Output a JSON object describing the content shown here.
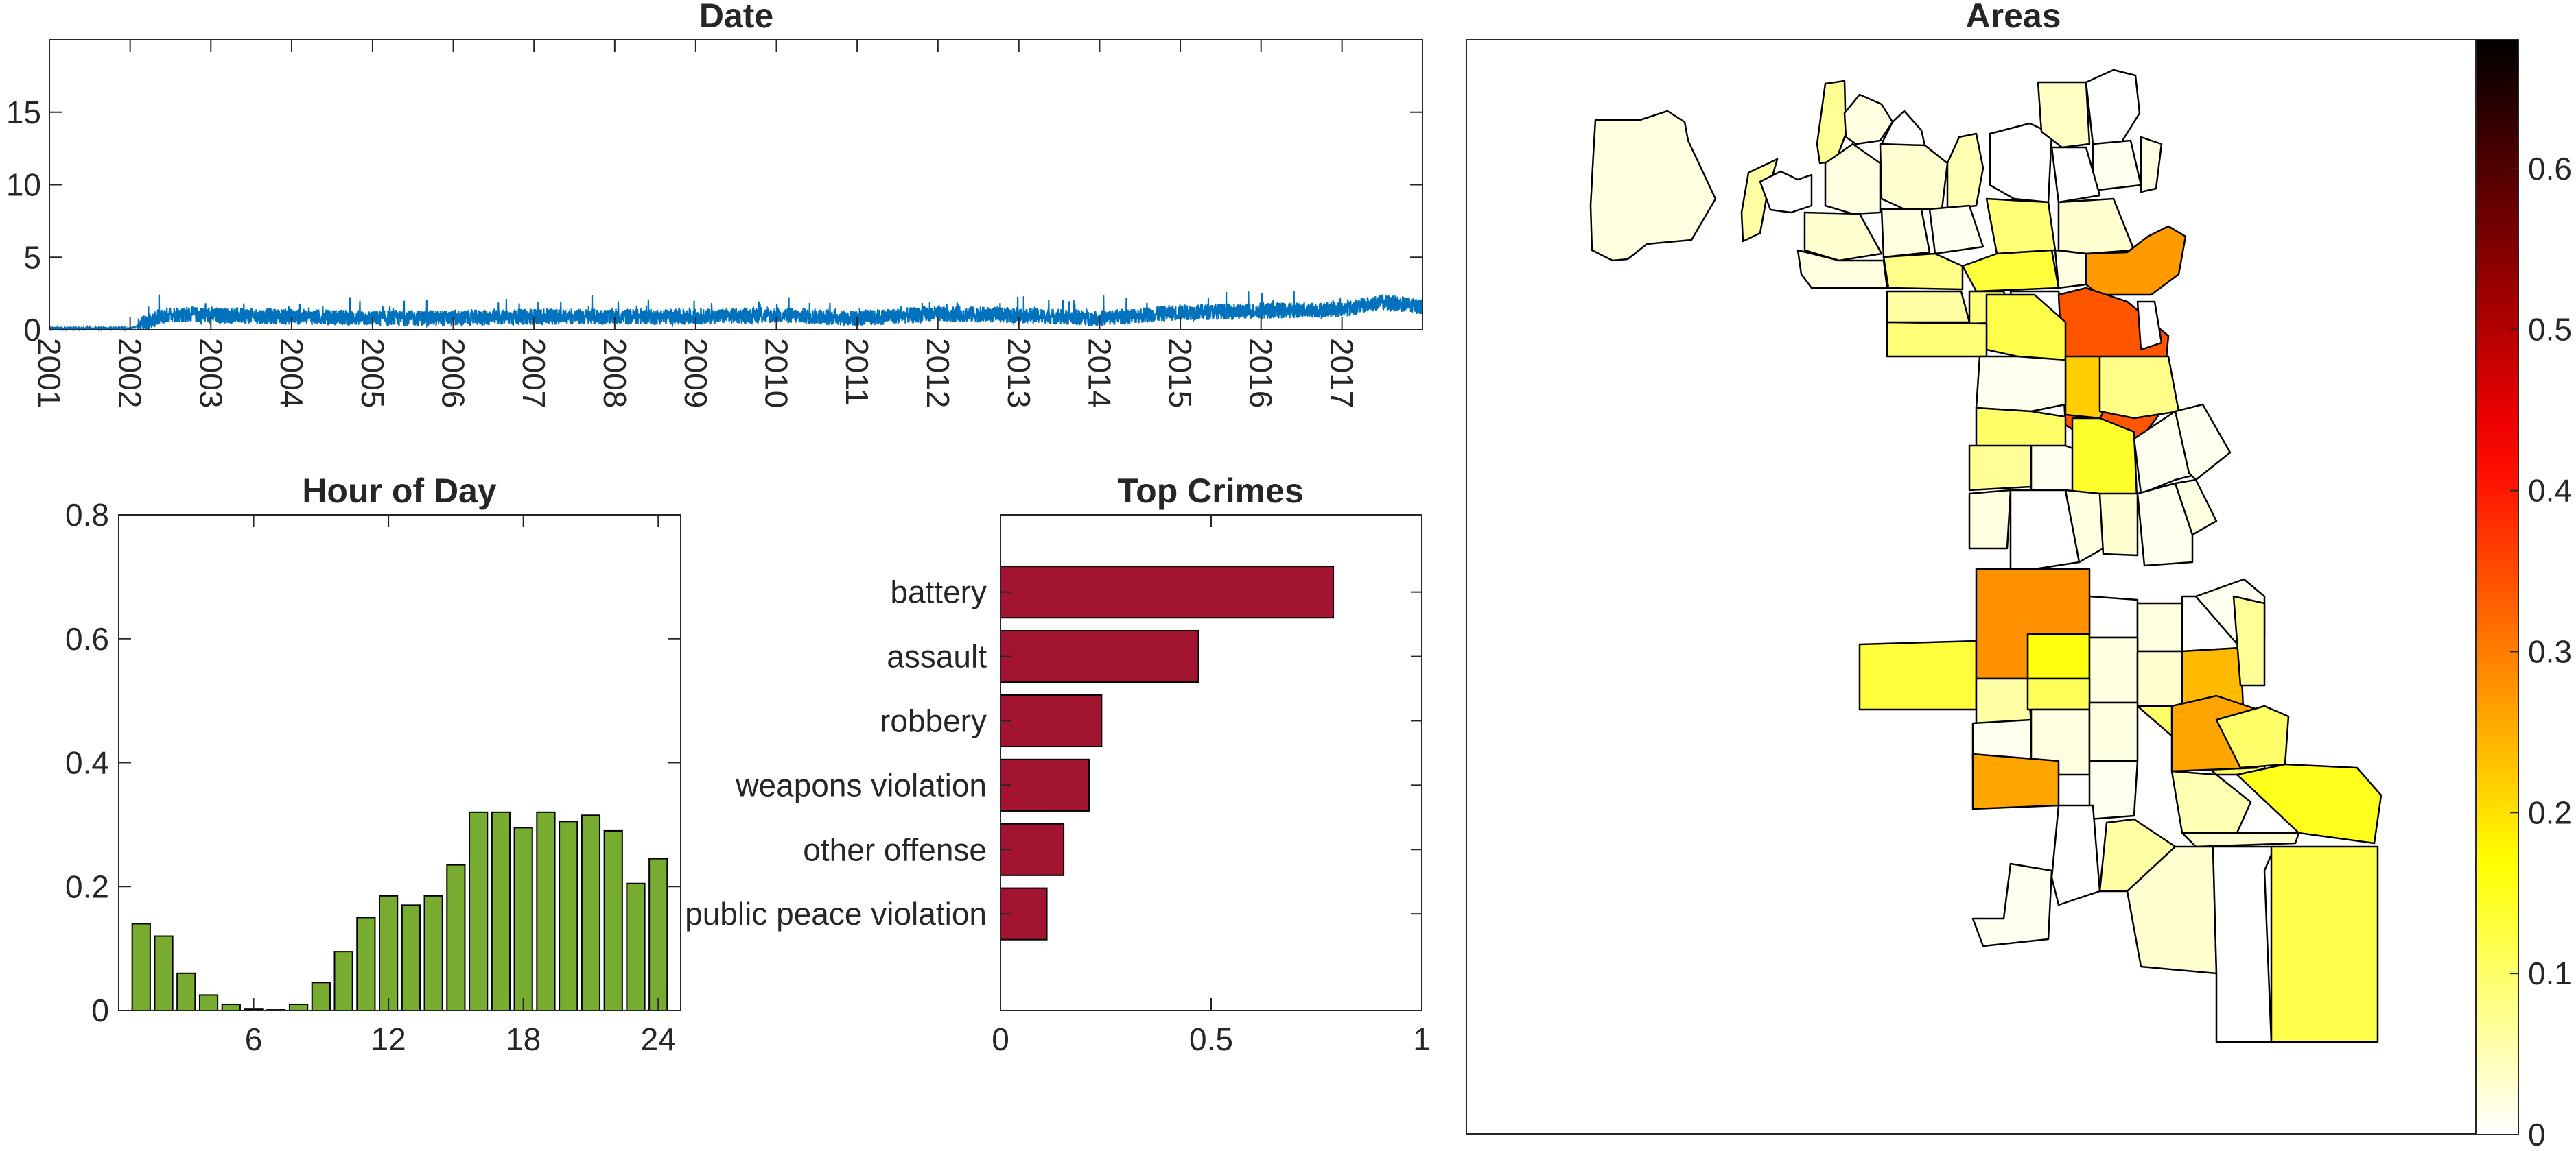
{
  "chart_data": [
    {
      "type": "line",
      "title": "Date",
      "xlabel": "",
      "ylabel": "",
      "ylim": [
        0,
        20
      ],
      "yticks": [
        0,
        5,
        10,
        15
      ],
      "xlim": [
        "2001-01-01",
        "2017-12-31"
      ],
      "xtick_labels": [
        "2001",
        "2002",
        "2003",
        "2004",
        "2005",
        "2006",
        "2007",
        "2008",
        "2009",
        "2010",
        "2011",
        "2012",
        "2013",
        "2014",
        "2015",
        "2016",
        "2017"
      ],
      "series_color": "#0072BD",
      "series": [
        {
          "x": [
            "2001",
            "2002",
            "2002.5",
            "2003",
            "2004",
            "2005",
            "2006",
            "2007",
            "2008",
            "2009",
            "2010",
            "2011",
            "2012",
            "2013",
            "2014",
            "2015",
            "2016",
            "2017",
            "2017.5",
            "2017.99"
          ],
          "values": [
            0.1,
            0.1,
            1.1,
            1.0,
            0.9,
            0.8,
            0.8,
            0.9,
            0.9,
            0.9,
            1.0,
            0.8,
            1.1,
            1.0,
            0.8,
            1.2,
            1.3,
            1.4,
            1.9,
            1.6
          ]
        }
      ],
      "grid": false
    },
    {
      "type": "bar",
      "title": "Hour of Day",
      "xlabel": "",
      "ylabel": "",
      "ylim": [
        0,
        0.8
      ],
      "yticks": [
        0,
        0.2,
        0.4,
        0.6,
        0.8
      ],
      "xlim": [
        0,
        25
      ],
      "xticks": [
        6,
        12,
        18,
        24
      ],
      "bar_color": "#77AC30",
      "categories": [
        1,
        2,
        3,
        4,
        5,
        6,
        7,
        8,
        9,
        10,
        11,
        12,
        13,
        14,
        15,
        16,
        17,
        18,
        19,
        20,
        21,
        22,
        23,
        24
      ],
      "values": [
        0.14,
        0.12,
        0.06,
        0.025,
        0.01,
        0.002,
        0.001,
        0.01,
        0.045,
        0.095,
        0.15,
        0.185,
        0.17,
        0.185,
        0.235,
        0.32,
        0.32,
        0.295,
        0.32,
        0.305,
        0.315,
        0.29,
        0.205,
        0.245
      ]
    },
    {
      "type": "bar",
      "orientation": "horizontal",
      "title": "Top Crimes",
      "xlabel": "",
      "ylabel": "",
      "xlim": [
        0,
        1
      ],
      "xticks": [
        0,
        0.5,
        1
      ],
      "bar_color": "#A2142F",
      "categories": [
        "battery",
        "assault",
        "robbery",
        "weapons violation",
        "other offense",
        "public peace violation"
      ],
      "values": [
        0.79,
        0.47,
        0.24,
        0.21,
        0.15,
        0.11
      ]
    },
    {
      "type": "heatmap",
      "subtype": "choropleth",
      "title": "Areas",
      "colormap": "hot (reversed)",
      "clim": [
        0,
        0.68
      ],
      "colorbar_ticks": [
        0,
        0.1,
        0.2,
        0.3,
        0.4,
        0.5,
        0.6
      ],
      "colorbar_placement": "right",
      "regions": [
        {
          "value": 0.02
        },
        {
          "value": 0.06
        },
        {
          "value": 0.0
        },
        {
          "value": 0.07
        },
        {
          "value": 0.02
        },
        {
          "value": 0.0
        },
        {
          "value": 0.02
        },
        {
          "value": 0.03
        },
        {
          "value": 0.05
        },
        {
          "value": 0.0
        },
        {
          "value": 0.04
        },
        {
          "value": 0.0
        },
        {
          "value": 0.01
        },
        {
          "value": 0.02
        },
        {
          "value": 0.03
        },
        {
          "value": 0.02
        },
        {
          "value": 0.01
        },
        {
          "value": 0.09
        },
        {
          "value": 0.0
        },
        {
          "value": 0.03
        },
        {
          "value": 0.02
        },
        {
          "value": 0.08
        },
        {
          "value": 0.13
        },
        {
          "value": 0.27
        },
        {
          "value": 0.02
        },
        {
          "value": 0.06
        },
        {
          "value": 0.09
        },
        {
          "value": 0.0
        },
        {
          "value": 0.34
        },
        {
          "value": 0.0
        },
        {
          "value": 0.12
        },
        {
          "value": 0.09
        },
        {
          "value": 0.22
        },
        {
          "value": 0.08
        },
        {
          "value": 0.01
        },
        {
          "value": 0.1
        },
        {
          "value": 0.07
        },
        {
          "value": 0.01
        },
        {
          "value": 0.14
        },
        {
          "value": 0.01
        },
        {
          "value": 0.01
        },
        {
          "value": 0.02
        },
        {
          "value": 0.0
        },
        {
          "value": 0.02
        },
        {
          "value": 0.03
        },
        {
          "value": 0.01
        },
        {
          "value": 0.02
        },
        {
          "value": 0.16
        },
        {
          "value": 0.0
        },
        {
          "value": 0.02
        },
        {
          "value": 0.0
        },
        {
          "value": 0.13
        },
        {
          "value": 0.28
        },
        {
          "value": 0.02
        },
        {
          "value": 0.03
        },
        {
          "value": 0.24
        },
        {
          "value": 0.01
        },
        {
          "value": 0.07
        },
        {
          "value": 0.06
        },
        {
          "value": 0.11
        },
        {
          "value": 0.1
        },
        {
          "value": 0.26
        },
        {
          "value": 0.1
        },
        {
          "value": 0.01
        },
        {
          "value": 0.02
        },
        {
          "value": 0.02
        },
        {
          "value": 0.26
        },
        {
          "value": 0.01
        },
        {
          "value": 0.0
        },
        {
          "value": 0.05
        },
        {
          "value": 0.15
        },
        {
          "value": 0.03
        },
        {
          "value": 0.06
        },
        {
          "value": 0.01
        },
        {
          "value": 0.03
        },
        {
          "value": 0.0
        },
        {
          "value": 0.12
        }
      ]
    }
  ]
}
